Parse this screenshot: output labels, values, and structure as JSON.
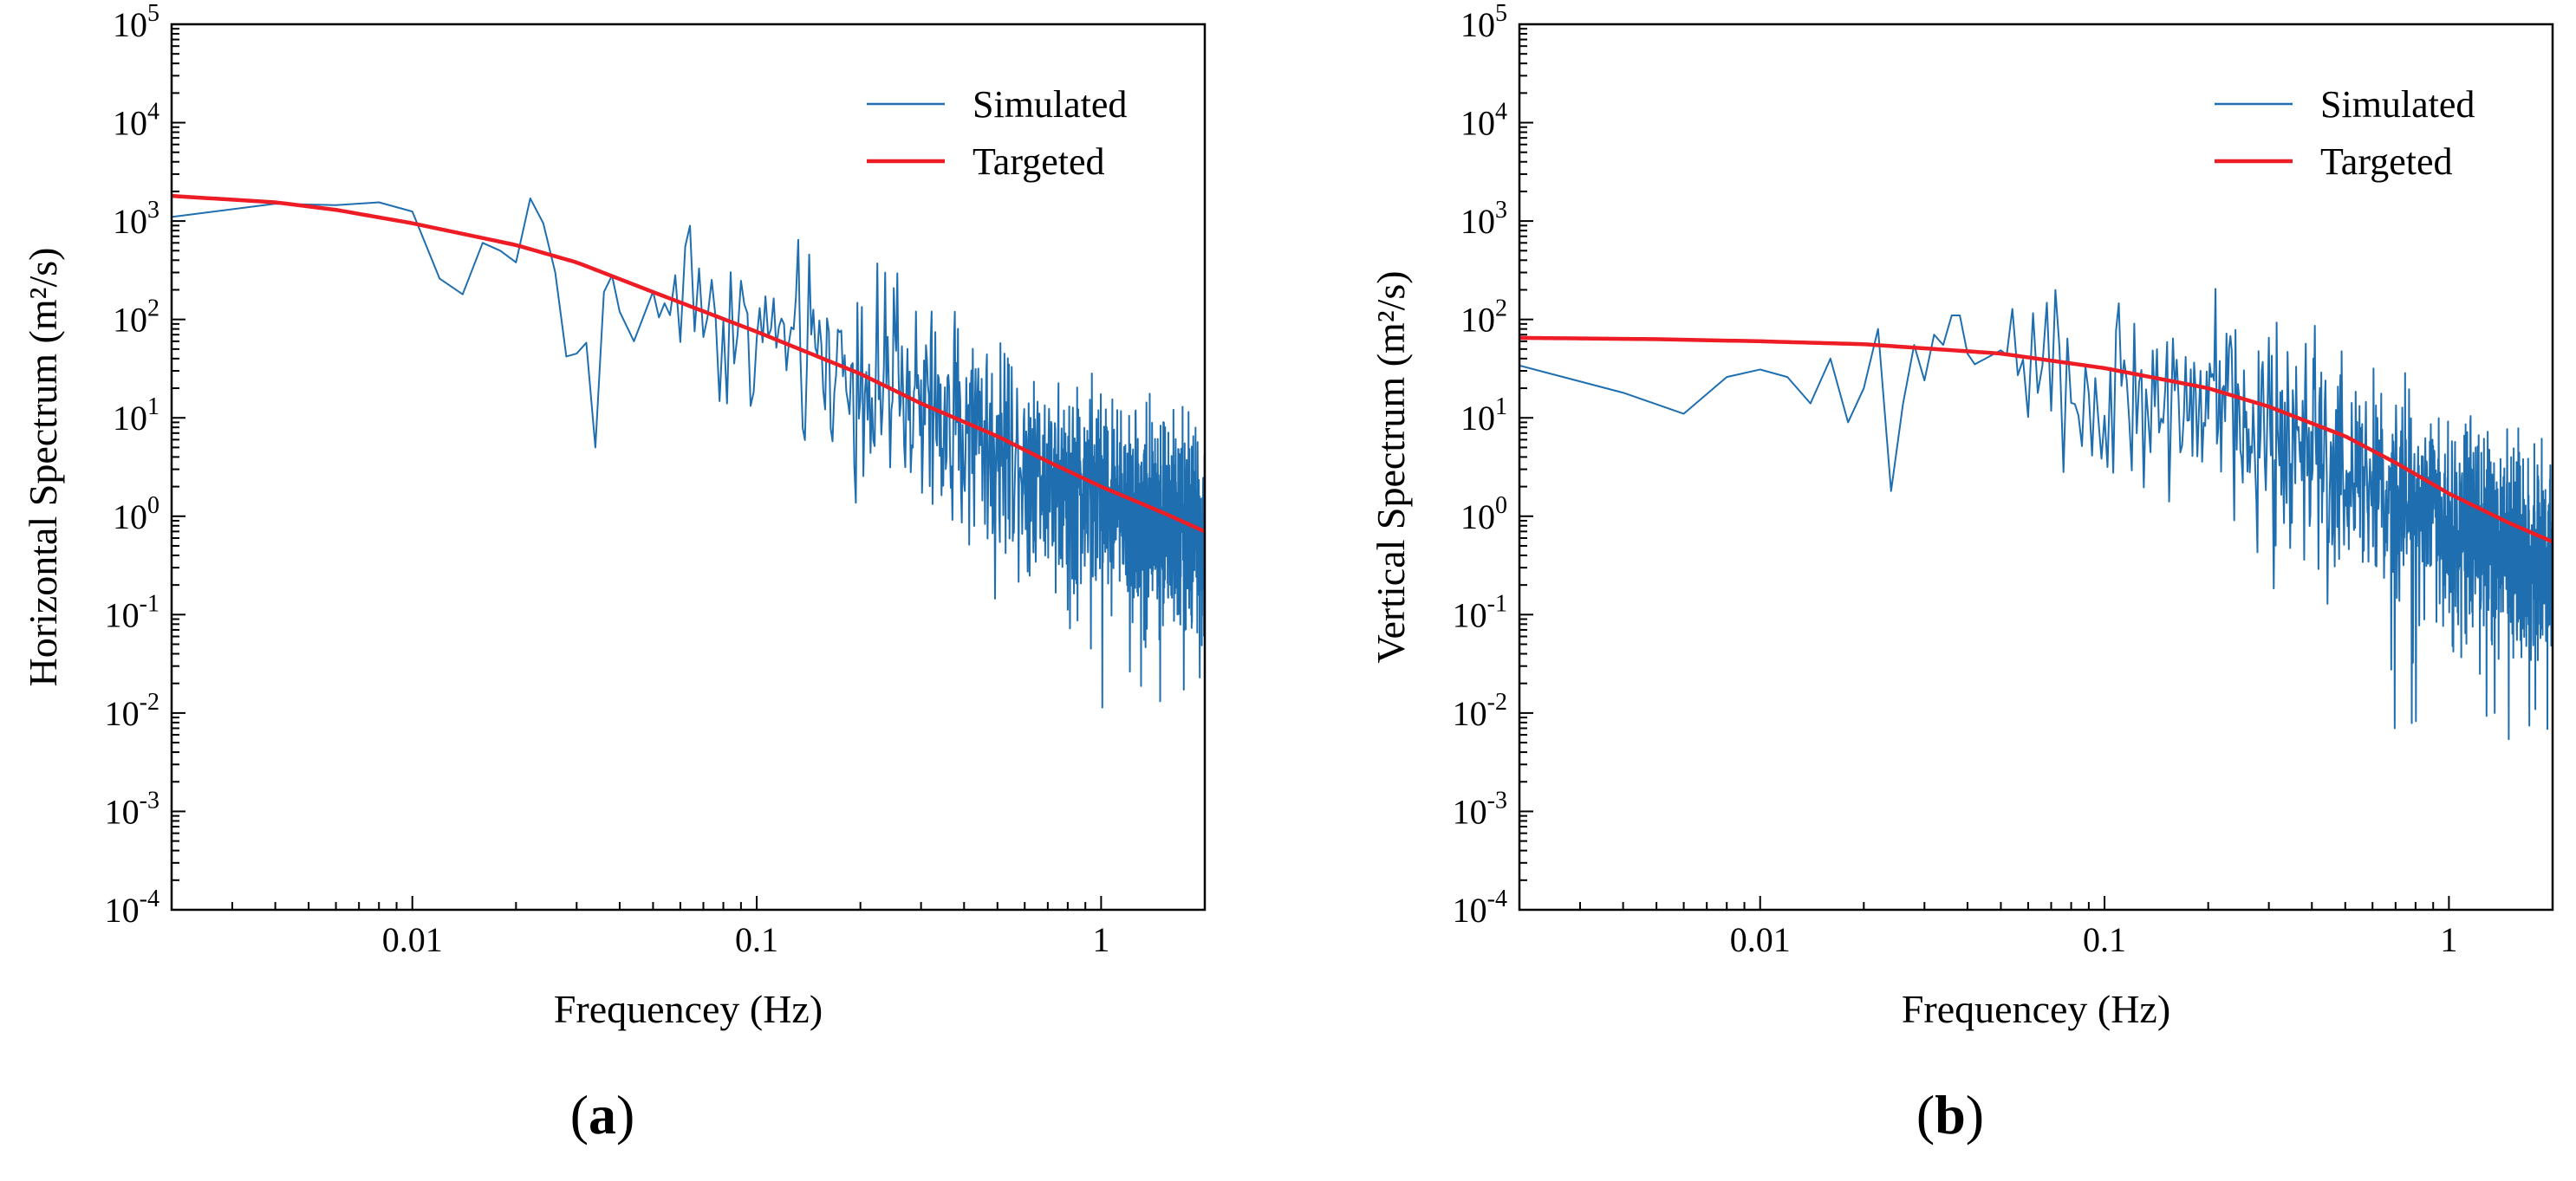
{
  "chart_data": [
    {
      "type": "line",
      "panel_label": "a",
      "xlabel": "Frequencey (Hz)",
      "ylabel": "Horizontal Spectrum",
      "ylabel_unit": "(m²/s)",
      "xscale": "log",
      "yscale": "log",
      "xlim": [
        0.002,
        2.0
      ],
      "ylim": [
        0.0001,
        100000
      ],
      "xticks": [
        0.01,
        0.1,
        1
      ],
      "xtick_labels": [
        "0.01",
        "0.1",
        "1"
      ],
      "yticks": [
        0.0001,
        0.001,
        0.01,
        0.1,
        1,
        10,
        100,
        1000,
        10000,
        100000
      ],
      "ytick_mantissa": "10",
      "ytick_exponents": [
        "-4",
        "-3",
        "-2",
        "-1",
        "0",
        "1",
        "2",
        "3",
        "4",
        "5"
      ],
      "legend_position": "top-right",
      "series": [
        {
          "name": "Simulated",
          "color": "#1f6fb0",
          "style": "noisy",
          "anchors": [
            [
              0.002,
              1100
            ],
            [
              0.004,
              1500
            ],
            [
              0.006,
              1450
            ],
            [
              0.008,
              1550
            ],
            [
              0.01,
              1250
            ],
            [
              0.012,
              260
            ],
            [
              0.014,
              180
            ],
            [
              0.016,
              600
            ],
            [
              0.018,
              500
            ],
            [
              0.02,
              380
            ],
            [
              0.022,
              1700
            ],
            [
              0.024,
              950
            ],
            [
              0.026,
              300
            ],
            [
              0.028,
              42
            ],
            [
              0.03,
              45
            ],
            [
              0.032,
              58
            ],
            [
              0.034,
              5
            ],
            [
              0.036,
              190
            ],
            [
              0.038,
              280
            ],
            [
              0.04,
              120
            ],
            [
              0.044,
              60
            ],
            [
              0.05,
              130
            ],
            [
              0.06,
              250
            ],
            [
              0.07,
              150
            ],
            [
              0.08,
              110
            ],
            [
              0.1,
              80
            ],
            [
              0.15,
              40
            ],
            [
              0.2,
              28
            ],
            [
              0.3,
              13
            ],
            [
              0.5,
              6
            ],
            [
              0.7,
              3
            ],
            [
              1.0,
              1.6
            ],
            [
              1.5,
              0.9
            ],
            [
              2.0,
              0.7
            ]
          ],
          "noise_sigma": 0.9
        },
        {
          "name": "Targeted",
          "color": "#ee1c25",
          "style": "smooth",
          "anchors": [
            [
              0.002,
              1800
            ],
            [
              0.004,
              1550
            ],
            [
              0.006,
              1300
            ],
            [
              0.01,
              950
            ],
            [
              0.02,
              570
            ],
            [
              0.03,
              380
            ],
            [
              0.05,
              190
            ],
            [
              0.1,
              75
            ],
            [
              0.2,
              28
            ],
            [
              0.3,
              14
            ],
            [
              0.5,
              6.5
            ],
            [
              0.7,
              3.6
            ],
            [
              1.0,
              2.0
            ],
            [
              1.5,
              1.1
            ],
            [
              2.0,
              0.7
            ]
          ]
        }
      ]
    },
    {
      "type": "line",
      "panel_label": "b",
      "xlabel": "Frequencey (Hz)",
      "ylabel": "Vertical Spectrum",
      "ylabel_unit": "(m²/s)",
      "xscale": "log",
      "yscale": "log",
      "xlim": [
        0.002,
        2.0
      ],
      "ylim": [
        0.0001,
        100000
      ],
      "xticks": [
        0.01,
        0.1,
        1
      ],
      "xtick_labels": [
        "0.01",
        "0.1",
        "1"
      ],
      "yticks": [
        0.0001,
        0.001,
        0.01,
        0.1,
        1,
        10,
        100,
        1000,
        10000,
        100000
      ],
      "ytick_mantissa": "10",
      "ytick_exponents": [
        "-4",
        "-3",
        "-2",
        "-1",
        "0",
        "1",
        "2",
        "3",
        "4",
        "5"
      ],
      "legend_position": "top-right",
      "series": [
        {
          "name": "Simulated",
          "color": "#1f6fb0",
          "style": "noisy",
          "anchors": [
            [
              0.002,
              34
            ],
            [
              0.004,
              18
            ],
            [
              0.006,
              11
            ],
            [
              0.008,
              26
            ],
            [
              0.01,
              31
            ],
            [
              0.012,
              26
            ],
            [
              0.014,
              14
            ],
            [
              0.016,
              40
            ],
            [
              0.018,
              9
            ],
            [
              0.02,
              20
            ],
            [
              0.022,
              80
            ],
            [
              0.024,
              1.8
            ],
            [
              0.026,
              14
            ],
            [
              0.028,
              55
            ],
            [
              0.03,
              24
            ],
            [
              0.032,
              70
            ],
            [
              0.034,
              55
            ],
            [
              0.036,
              110
            ],
            [
              0.038,
              110
            ],
            [
              0.04,
              45
            ],
            [
              0.042,
              35
            ],
            [
              0.05,
              60
            ],
            [
              0.06,
              30
            ],
            [
              0.08,
              25
            ],
            [
              0.1,
              22
            ],
            [
              0.15,
              18
            ],
            [
              0.2,
              14
            ],
            [
              0.3,
              9
            ],
            [
              0.5,
              4
            ],
            [
              0.7,
              2
            ],
            [
              1.0,
              0.9
            ],
            [
              1.5,
              0.5
            ],
            [
              2.0,
              0.3
            ]
          ],
          "noise_sigma": 0.9
        },
        {
          "name": "Targeted",
          "color": "#ee1c25",
          "style": "smooth",
          "anchors": [
            [
              0.002,
              65
            ],
            [
              0.005,
              63
            ],
            [
              0.01,
              60
            ],
            [
              0.02,
              56
            ],
            [
              0.05,
              45
            ],
            [
              0.1,
              32
            ],
            [
              0.2,
              20
            ],
            [
              0.3,
              13
            ],
            [
              0.5,
              6.5
            ],
            [
              0.7,
              3.5
            ],
            [
              1.0,
              1.7
            ],
            [
              1.5,
              0.85
            ],
            [
              2.0,
              0.55
            ]
          ]
        }
      ]
    }
  ]
}
